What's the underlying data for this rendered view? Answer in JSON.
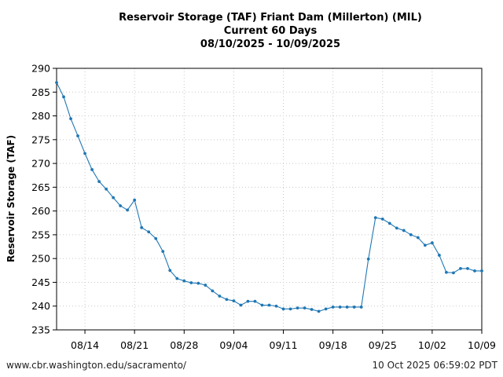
{
  "chart_data": {
    "type": "line",
    "title": "Reservoir Storage (TAF) Friant Dam (Millerton) (MIL)",
    "subtitle": "Current 60 Days",
    "date_range": "08/10/2025 - 10/09/2025",
    "ylabel": "Reservoir Storage (TAF)",
    "xlabel": "",
    "ylim": [
      235,
      290
    ],
    "yticks": [
      235,
      240,
      245,
      250,
      255,
      260,
      265,
      270,
      275,
      280,
      285,
      290
    ],
    "xlim_days": [
      0,
      60
    ],
    "xticks": [
      {
        "day": 4,
        "label": "08/14"
      },
      {
        "day": 11,
        "label": "08/21"
      },
      {
        "day": 18,
        "label": "08/28"
      },
      {
        "day": 25,
        "label": "09/04"
      },
      {
        "day": 32,
        "label": "09/11"
      },
      {
        "day": 39,
        "label": "09/18"
      },
      {
        "day": 46,
        "label": "09/25"
      },
      {
        "day": 53,
        "label": "10/02"
      },
      {
        "day": 60,
        "label": "10/09"
      }
    ],
    "grid": true,
    "line_color": "#1f77b4",
    "series": [
      {
        "x": [
          "08/10",
          "08/11",
          "08/12",
          "08/13",
          "08/14",
          "08/15",
          "08/16",
          "08/17",
          "08/18",
          "08/19",
          "08/20",
          "08/21",
          "08/22",
          "08/23",
          "08/24",
          "08/25",
          "08/26",
          "08/27",
          "08/28",
          "08/29",
          "08/30",
          "08/31",
          "09/01",
          "09/02",
          "09/03",
          "09/04",
          "09/05",
          "09/06",
          "09/07",
          "09/08",
          "09/09",
          "09/10",
          "09/11",
          "09/12",
          "09/13",
          "09/14",
          "09/15",
          "09/16",
          "09/17",
          "09/18",
          "09/19",
          "09/20",
          "09/21",
          "09/22",
          "09/23",
          "09/24",
          "09/25",
          "09/26",
          "09/27",
          "09/28",
          "09/29",
          "09/30",
          "10/01",
          "10/02",
          "10/03",
          "10/04",
          "10/05",
          "10/06",
          "10/07",
          "10/08",
          "10/09"
        ],
        "values": [
          287.0,
          284.0,
          279.4,
          275.8,
          272.1,
          268.7,
          266.2,
          264.6,
          262.8,
          261.1,
          260.2,
          262.3,
          256.5,
          255.6,
          254.2,
          251.5,
          247.5,
          245.8,
          245.3,
          244.9,
          244.8,
          244.4,
          243.2,
          242.1,
          241.4,
          241.1,
          240.2,
          241.0,
          241.0,
          240.2,
          240.2,
          240.0,
          239.4,
          239.4,
          239.6,
          239.6,
          239.3,
          238.9,
          239.4,
          239.8,
          239.8,
          239.8,
          239.8,
          239.8,
          249.9,
          258.6,
          258.3,
          257.4,
          256.4,
          255.9,
          255.0,
          254.4,
          252.8,
          253.3,
          250.7,
          247.1,
          247.0,
          247.9,
          247.9,
          247.4,
          247.4
        ]
      }
    ]
  },
  "footer": {
    "source_url": "www.cbr.washington.edu/sacramento/",
    "generated": "10 Oct 2025 06:59:02 PDT"
  }
}
